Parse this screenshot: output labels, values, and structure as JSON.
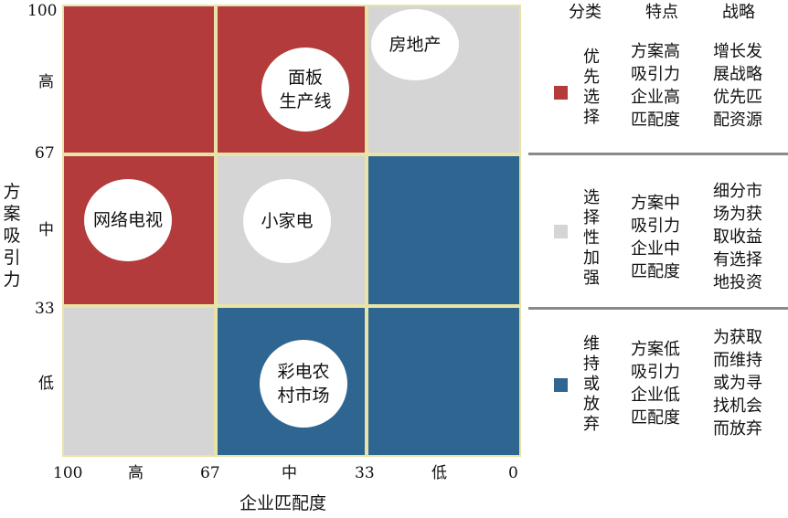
{
  "colors": {
    "priority": "#b33b3b",
    "selective": "#d5d5d5",
    "maintain": "#2f6591",
    "grid_line": "#e8e3a6",
    "separator": "#8a8a8a"
  },
  "y_axis": {
    "label": "方\n案\n吸\n引\n力",
    "ticks": [
      "100",
      "67",
      "33"
    ],
    "bands": [
      "高",
      "中",
      "低"
    ]
  },
  "x_axis": {
    "label": "企业匹配度",
    "ticks": [
      "100",
      "67",
      "33",
      "0"
    ],
    "bands": [
      "高",
      "中",
      "低"
    ]
  },
  "grid": {
    "rows": [
      [
        "priority",
        "priority",
        "selective"
      ],
      [
        "priority",
        "selective",
        "maintain"
      ],
      [
        "selective",
        "maintain",
        "maintain"
      ]
    ]
  },
  "bubbles": [
    {
      "label": "面板\n生产线"
    },
    {
      "label": "房地产"
    },
    {
      "label": "网络电视"
    },
    {
      "label": "小家电"
    },
    {
      "label": "彩电农\n村市场"
    }
  ],
  "legend": {
    "headers": {
      "category": "分类",
      "features": "特点",
      "strategy": "战略"
    },
    "rows": [
      {
        "category": "优\n先\n选\n择",
        "features": "方案高\n吸引力\n企业高\n匹配度",
        "strategy": "增长发\n展战略\n优先匹\n配资源",
        "color_icon": "red-square-icon"
      },
      {
        "category": "选\n择\n性\n加\n强",
        "features": "方案中\n吸引力\n企业中\n匹配度",
        "strategy": "细分市\n场为获\n取收益\n有选择\n地投资",
        "color_icon": "grey-square-icon"
      },
      {
        "category": "维\n持\n或\n放\n弃",
        "features": "方案低\n吸引力\n企业低\n匹配度",
        "strategy": "为获取\n而维持\n或为寻\n找机会\n而放弃",
        "color_icon": "blue-square-icon"
      }
    ]
  }
}
